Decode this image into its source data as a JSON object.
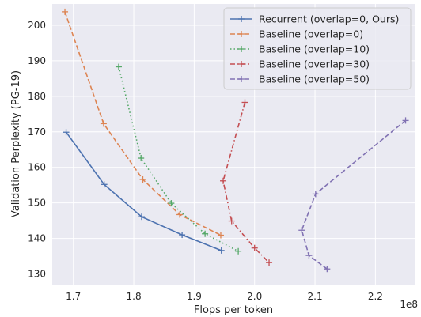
{
  "chart_data": {
    "type": "line",
    "xlabel": "Flops per token",
    "ylabel": "Validation Perplexity (PG-19)",
    "x_offset_label": "1e8",
    "xlim": [
      1.665,
      2.265
    ],
    "ylim": [
      127,
      206
    ],
    "xticks": [
      1.7,
      1.8,
      1.9,
      2.0,
      2.1,
      2.2
    ],
    "xtick_labels": [
      "1.7",
      "1.8",
      "1.9",
      "2.0",
      "2.1",
      "2.2"
    ],
    "yticks": [
      130,
      140,
      150,
      160,
      170,
      180,
      190,
      200
    ],
    "ytick_labels": [
      "130",
      "140",
      "150",
      "160",
      "170",
      "180",
      "190",
      "200"
    ],
    "grid": true,
    "legend_position": "top-right",
    "series": [
      {
        "name": "Recurrent (overlap=0, Ours)",
        "color": "#4c72b0",
        "dash": "solid",
        "x": [
          1.688,
          1.751,
          1.813,
          1.88,
          1.945
        ],
        "y": [
          169.9,
          155.2,
          146.1,
          141.0,
          136.6
        ]
      },
      {
        "name": "Baseline (overlap=0)",
        "color": "#dd8452",
        "dash": "dashed",
        "x": [
          1.686,
          1.75,
          1.815,
          1.876,
          1.944
        ],
        "y": [
          203.8,
          172.3,
          156.6,
          146.7,
          140.9
        ]
      },
      {
        "name": "Baseline (overlap=10)",
        "color": "#55a868",
        "dash": "dotted",
        "x": [
          1.775,
          1.812,
          1.862,
          1.918,
          1.973
        ],
        "y": [
          188.3,
          162.6,
          149.9,
          141.3,
          136.4
        ]
      },
      {
        "name": "Baseline (overlap=30)",
        "color": "#c44e52",
        "dash": "dashdot",
        "x": [
          1.984,
          1.948,
          1.962,
          2.0,
          2.024
        ],
        "y": [
          178.3,
          156.2,
          144.9,
          137.3,
          133.2
        ]
      },
      {
        "name": "Baseline (overlap=50)",
        "color": "#8172b3",
        "dash": "dashed",
        "x": [
          2.25,
          2.101,
          2.078,
          2.09,
          2.12
        ],
        "y": [
          173.2,
          152.5,
          142.3,
          135.2,
          131.4
        ]
      }
    ]
  }
}
